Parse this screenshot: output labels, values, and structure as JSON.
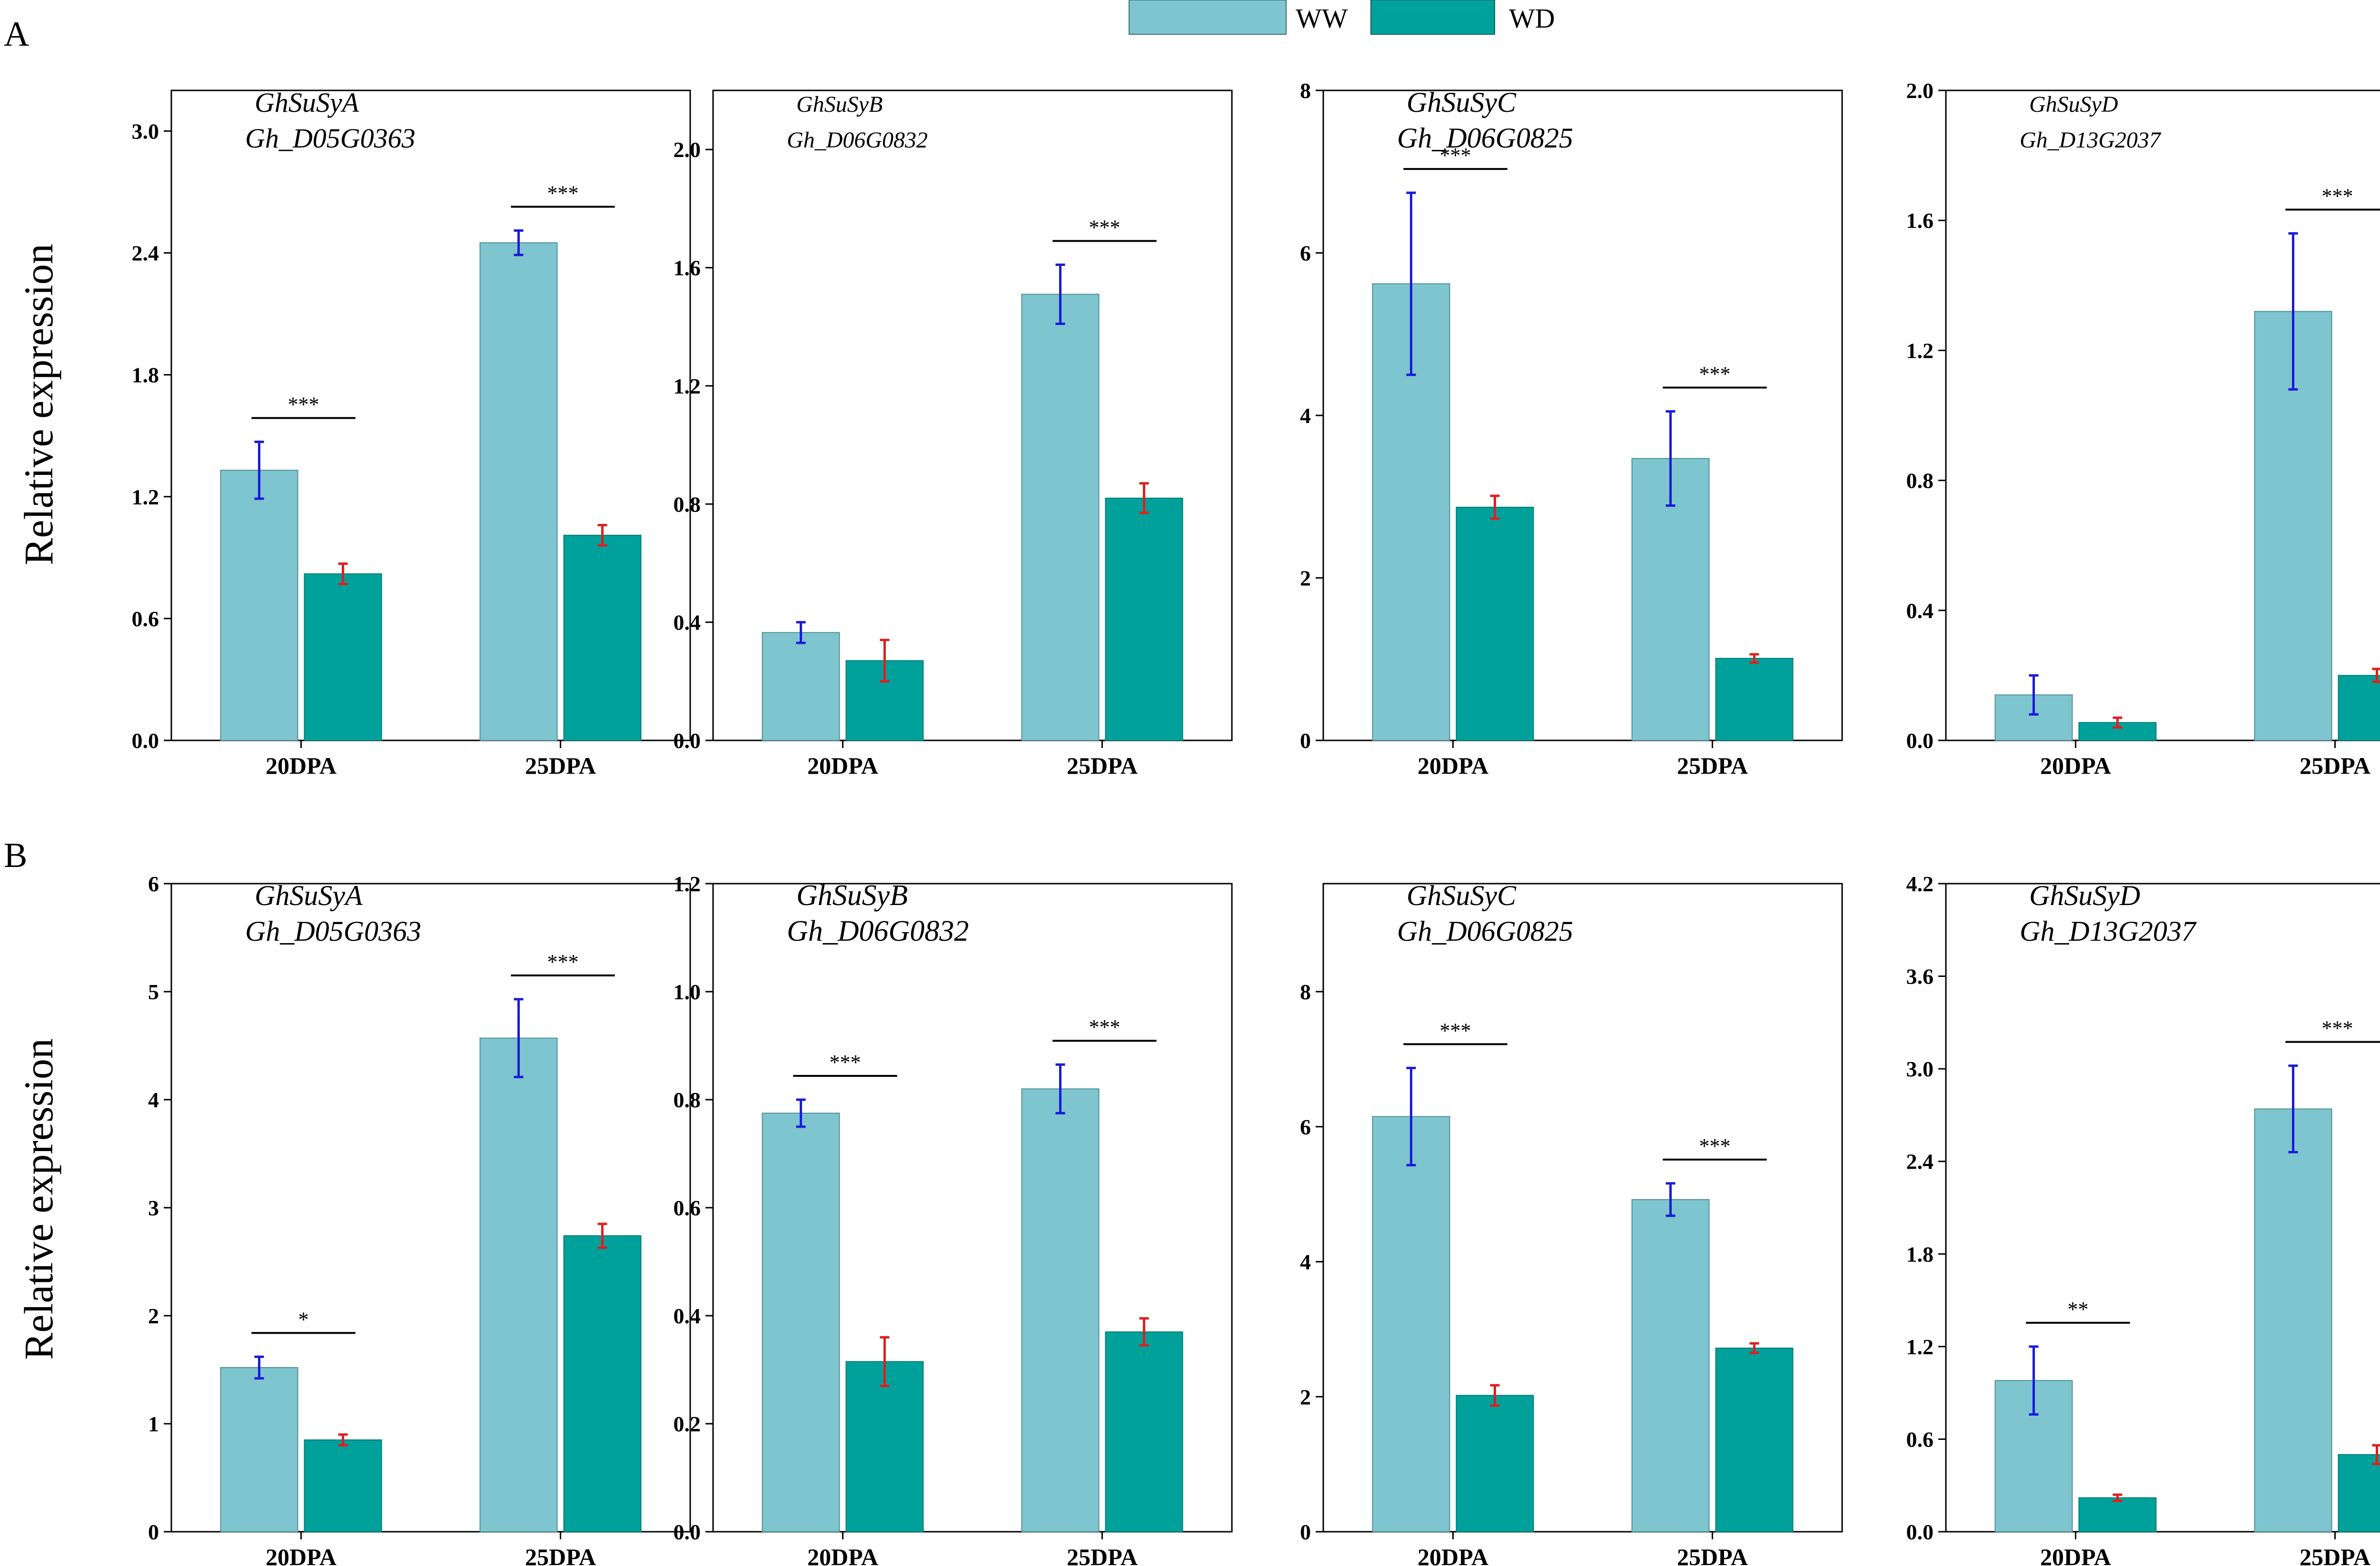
{
  "legend": [
    {
      "label": "WW",
      "color": "#7ec5cf"
    },
    {
      "label": "WD",
      "color": "#00a19b"
    }
  ],
  "colors": {
    "ww_bar": "#7ec5cf",
    "wd_bar": "#00a19b",
    "ww_error": "#1a1adb",
    "wd_error": "#dd1f1f",
    "axis": "#000000"
  },
  "rows": [
    {
      "letter": "A",
      "ylabel": "Relative expression"
    },
    {
      "letter": "B",
      "ylabel": "Relative expression"
    }
  ],
  "chart_data": [
    {
      "type": "bar",
      "row": "A",
      "title": [
        "GhSuSyA",
        "Gh_D05G0363"
      ],
      "categories": [
        "20DPA",
        "25DPA"
      ],
      "ylim": [
        0,
        3.2
      ],
      "yticks": [
        "0.0",
        "0.6",
        "1.2",
        "1.8",
        "2.4",
        "3.0"
      ],
      "ytick_values": [
        0,
        0.6,
        1.2,
        1.8,
        2.4,
        3.0
      ],
      "series": [
        {
          "name": "WW",
          "values": [
            1.33,
            2.45
          ],
          "errors": [
            0.14,
            0.06
          ]
        },
        {
          "name": "WD",
          "values": [
            0.82,
            1.01
          ],
          "errors": [
            0.05,
            0.05
          ]
        }
      ],
      "significance": [
        "***",
        "***"
      ]
    },
    {
      "type": "bar",
      "row": "A",
      "title": [
        "GhSuSyB",
        "Gh_D06G0832"
      ],
      "categories": [
        "20DPA",
        "25DPA"
      ],
      "ylim": [
        0,
        2.2
      ],
      "yticks": [
        "0.0",
        "0.4",
        "0.8",
        "1.2",
        "1.6",
        "2.0"
      ],
      "ytick_values": [
        0,
        0.4,
        0.8,
        1.2,
        1.6,
        2.0
      ],
      "series": [
        {
          "name": "WW",
          "values": [
            0.365,
            1.51
          ],
          "errors": [
            0.035,
            0.1
          ]
        },
        {
          "name": "WD",
          "values": [
            0.27,
            0.82
          ],
          "errors": [
            0.07,
            0.05
          ]
        }
      ],
      "significance": [
        "",
        "***"
      ]
    },
    {
      "type": "bar",
      "row": "A",
      "title": [
        "GhSuSyC",
        "Gh_D06G0825"
      ],
      "categories": [
        "20DPA",
        "25DPA"
      ],
      "ylim": [
        0,
        8
      ],
      "yticks": [
        "0",
        "2",
        "4",
        "6",
        "8"
      ],
      "ytick_values": [
        0,
        2,
        4,
        6,
        8
      ],
      "series": [
        {
          "name": "WW",
          "values": [
            5.62,
            3.47
          ],
          "errors": [
            1.12,
            0.58
          ]
        },
        {
          "name": "WD",
          "values": [
            2.87,
            1.01
          ],
          "errors": [
            0.14,
            0.05
          ]
        }
      ],
      "significance": [
        "***",
        "***"
      ]
    },
    {
      "type": "bar",
      "row": "A",
      "title": [
        "GhSuSyD",
        "Gh_D13G2037"
      ],
      "categories": [
        "20DPA",
        "25DPA"
      ],
      "ylim": [
        0,
        2.0
      ],
      "yticks": [
        "0.0",
        "0.4",
        "0.8",
        "1.2",
        "1.6",
        "2.0"
      ],
      "ytick_values": [
        0,
        0.4,
        0.8,
        1.2,
        1.6,
        2.0
      ],
      "series": [
        {
          "name": "WW",
          "values": [
            0.14,
            1.32
          ],
          "errors": [
            0.06,
            0.24
          ]
        },
        {
          "name": "WD",
          "values": [
            0.055,
            0.2
          ],
          "errors": [
            0.015,
            0.02
          ]
        }
      ],
      "significance": [
        "",
        "***"
      ]
    },
    {
      "type": "bar",
      "row": "B",
      "title": [
        "GhSuSyA",
        "Gh_D05G0363"
      ],
      "categories": [
        "20DPA",
        "25DPA"
      ],
      "ylim": [
        0,
        6
      ],
      "yticks": [
        "0",
        "1",
        "2",
        "3",
        "4",
        "5",
        "6"
      ],
      "ytick_values": [
        0,
        1,
        2,
        3,
        4,
        5,
        6
      ],
      "series": [
        {
          "name": "WW",
          "values": [
            1.52,
            4.57
          ],
          "errors": [
            0.1,
            0.36
          ]
        },
        {
          "name": "WD",
          "values": [
            0.85,
            2.74
          ],
          "errors": [
            0.05,
            0.11
          ]
        }
      ],
      "significance": [
        "*",
        "***"
      ]
    },
    {
      "type": "bar",
      "row": "B",
      "title": [
        "GhSuSyB",
        "Gh_D06G0832"
      ],
      "categories": [
        "20DPA",
        "25DPA"
      ],
      "ylim": [
        0,
        1.2
      ],
      "yticks": [
        "0.0",
        "0.2",
        "0.4",
        "0.6",
        "0.8",
        "1.0",
        "1.2"
      ],
      "ytick_values": [
        0,
        0.2,
        0.4,
        0.6,
        0.8,
        1.0,
        1.2
      ],
      "series": [
        {
          "name": "WW",
          "values": [
            0.775,
            0.82
          ],
          "errors": [
            0.025,
            0.045
          ]
        },
        {
          "name": "WD",
          "values": [
            0.315,
            0.37
          ],
          "errors": [
            0.045,
            0.025
          ]
        }
      ],
      "significance": [
        "***",
        "***"
      ]
    },
    {
      "type": "bar",
      "row": "B",
      "title": [
        "GhSuSyC",
        "Gh_D06G0825"
      ],
      "categories": [
        "20DPA",
        "25DPA"
      ],
      "ylim": [
        0,
        9.6
      ],
      "yticks": [
        "0",
        "2",
        "4",
        "6",
        "8"
      ],
      "ytick_values": [
        0,
        2,
        4,
        6,
        8
      ],
      "series": [
        {
          "name": "WW",
          "values": [
            6.15,
            4.92
          ],
          "errors": [
            0.72,
            0.24
          ]
        },
        {
          "name": "WD",
          "values": [
            2.02,
            2.72
          ],
          "errors": [
            0.15,
            0.07
          ]
        }
      ],
      "significance": [
        "***",
        "***"
      ]
    },
    {
      "type": "bar",
      "row": "B",
      "title": [
        "GhSuSyD",
        "Gh_D13G2037"
      ],
      "categories": [
        "20DPA",
        "25DPA"
      ],
      "ylim": [
        0,
        4.2
      ],
      "yticks": [
        "0.0",
        "0.6",
        "1.2",
        "1.8",
        "2.4",
        "3.0",
        "3.6",
        "4.2"
      ],
      "ytick_values": [
        0,
        0.6,
        1.2,
        1.8,
        2.4,
        3.0,
        3.6,
        4.2
      ],
      "series": [
        {
          "name": "WW",
          "values": [
            0.98,
            2.74
          ],
          "errors": [
            0.22,
            0.28
          ]
        },
        {
          "name": "WD",
          "values": [
            0.22,
            0.5
          ],
          "errors": [
            0.02,
            0.06
          ]
        }
      ],
      "significance": [
        "**",
        "***"
      ]
    }
  ]
}
